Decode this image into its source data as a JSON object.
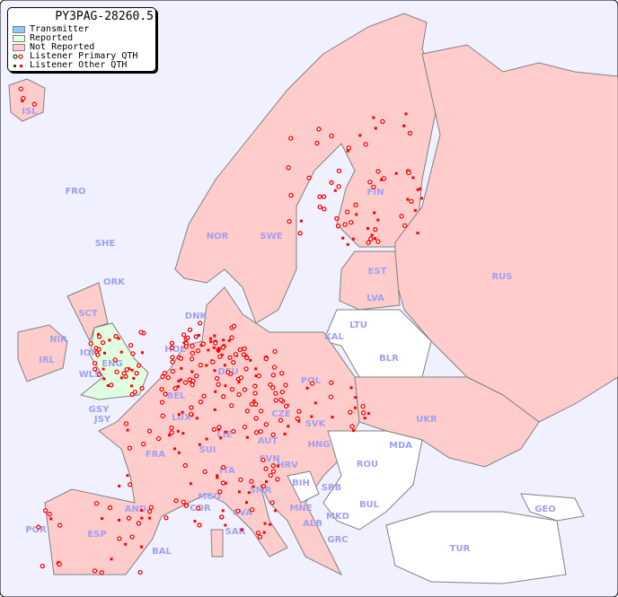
{
  "map": {
    "title": "PY3PAG-28260.5",
    "colors": {
      "sea": "#f0f0ff",
      "not_reported": "#ffcccc",
      "reported": "#e0ffe0",
      "transmitter": "#88ccff",
      "unlisted": "#ffffff",
      "border": "#808080",
      "marker": "#ff0000",
      "label": "#a0a0f0"
    },
    "legend": [
      {
        "label": "Transmitter"
      },
      {
        "label": "Reported"
      },
      {
        "label": "Not Reported"
      },
      {
        "label": "Listener Primary QTH"
      },
      {
        "label": "Listener Other QTH"
      }
    ],
    "countries": [
      "ISL",
      "FRO",
      "SHE",
      "ORK",
      "SCT",
      "NIR",
      "IOM",
      "IRL",
      "WLS",
      "ENG",
      "HOL",
      "DNK",
      "NOR",
      "SWE",
      "FIN",
      "EST",
      "LVA",
      "LTU",
      "KAL",
      "BLR",
      "RUS",
      "POL",
      "DEU",
      "BEL",
      "LUX",
      "GSY",
      "JSY",
      "CZE",
      "SVK",
      "UKR",
      "MDA",
      "AUT",
      "HNG",
      "LIE",
      "SUI",
      "FRA",
      "SVN",
      "HRV",
      "ROU",
      "ITA",
      "SMR",
      "BIH",
      "SRB",
      "MCO",
      "COR",
      "BUL",
      "GEO",
      "AND",
      "CVA",
      "MNE",
      "MKD",
      "ALB",
      "SAR",
      "POR",
      "ESP",
      "BAL",
      "GRC",
      "TUR"
    ]
  }
}
